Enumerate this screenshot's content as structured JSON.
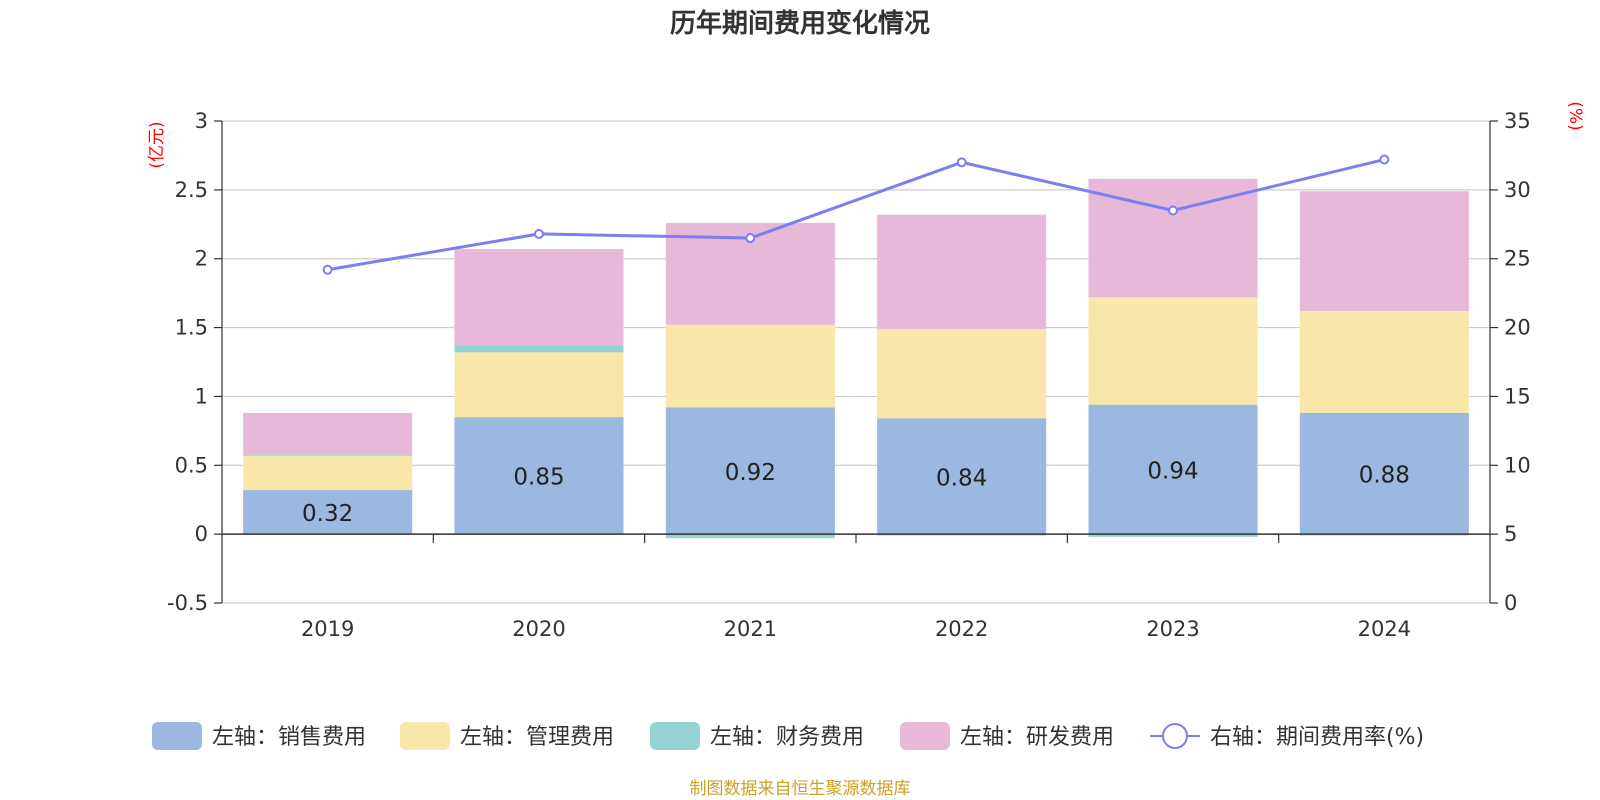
{
  "chart_data": {
    "type": "bar",
    "title": "历年期间费用变化情况",
    "categories": [
      "2019",
      "2020",
      "2021",
      "2022",
      "2023",
      "2024"
    ],
    "left_axis": {
      "name": "(亿元)",
      "min": -0.5,
      "max": 3,
      "ticks": [
        "-0.5",
        "0",
        "0.5",
        "1",
        "1.5",
        "2",
        "2.5",
        "3"
      ]
    },
    "right_axis": {
      "name": "(%)",
      "min": 0,
      "max": 35,
      "ticks": [
        "0",
        "5",
        "10",
        "15",
        "20",
        "25",
        "30",
        "35"
      ]
    },
    "stacked": true,
    "grid": true,
    "legend_position": "bottom",
    "series": [
      {
        "name": "左轴：销售费用",
        "type": "bar",
        "axis": "left",
        "color": "#9bb8e1",
        "values": [
          0.32,
          0.85,
          0.92,
          0.84,
          0.94,
          0.88
        ],
        "labels": [
          "0.32",
          "0.85",
          "0.92",
          "0.84",
          "0.94",
          "0.88"
        ]
      },
      {
        "name": "左轴：管理费用",
        "type": "bar",
        "axis": "left",
        "color": "#f8e7a8",
        "values": [
          0.25,
          0.47,
          0.6,
          0.65,
          0.78,
          0.74
        ]
      },
      {
        "name": "左轴：财务费用",
        "type": "bar",
        "axis": "left",
        "color": "#96d3d3",
        "values": [
          0.01,
          0.05,
          -0.03,
          -0.01,
          -0.02,
          -0.01
        ]
      },
      {
        "name": "左轴：研发费用",
        "type": "bar",
        "axis": "left",
        "color": "#e8b8d9",
        "values": [
          0.3,
          0.7,
          0.74,
          0.83,
          0.86,
          0.87
        ]
      },
      {
        "name": "右轴：期间费用率(%)",
        "type": "line",
        "axis": "right",
        "color": "#7b7ff0",
        "values": [
          24.2,
          26.8,
          26.5,
          32.0,
          28.5,
          32.2
        ]
      }
    ],
    "source": "制图数据来自恒生聚源数据库"
  }
}
